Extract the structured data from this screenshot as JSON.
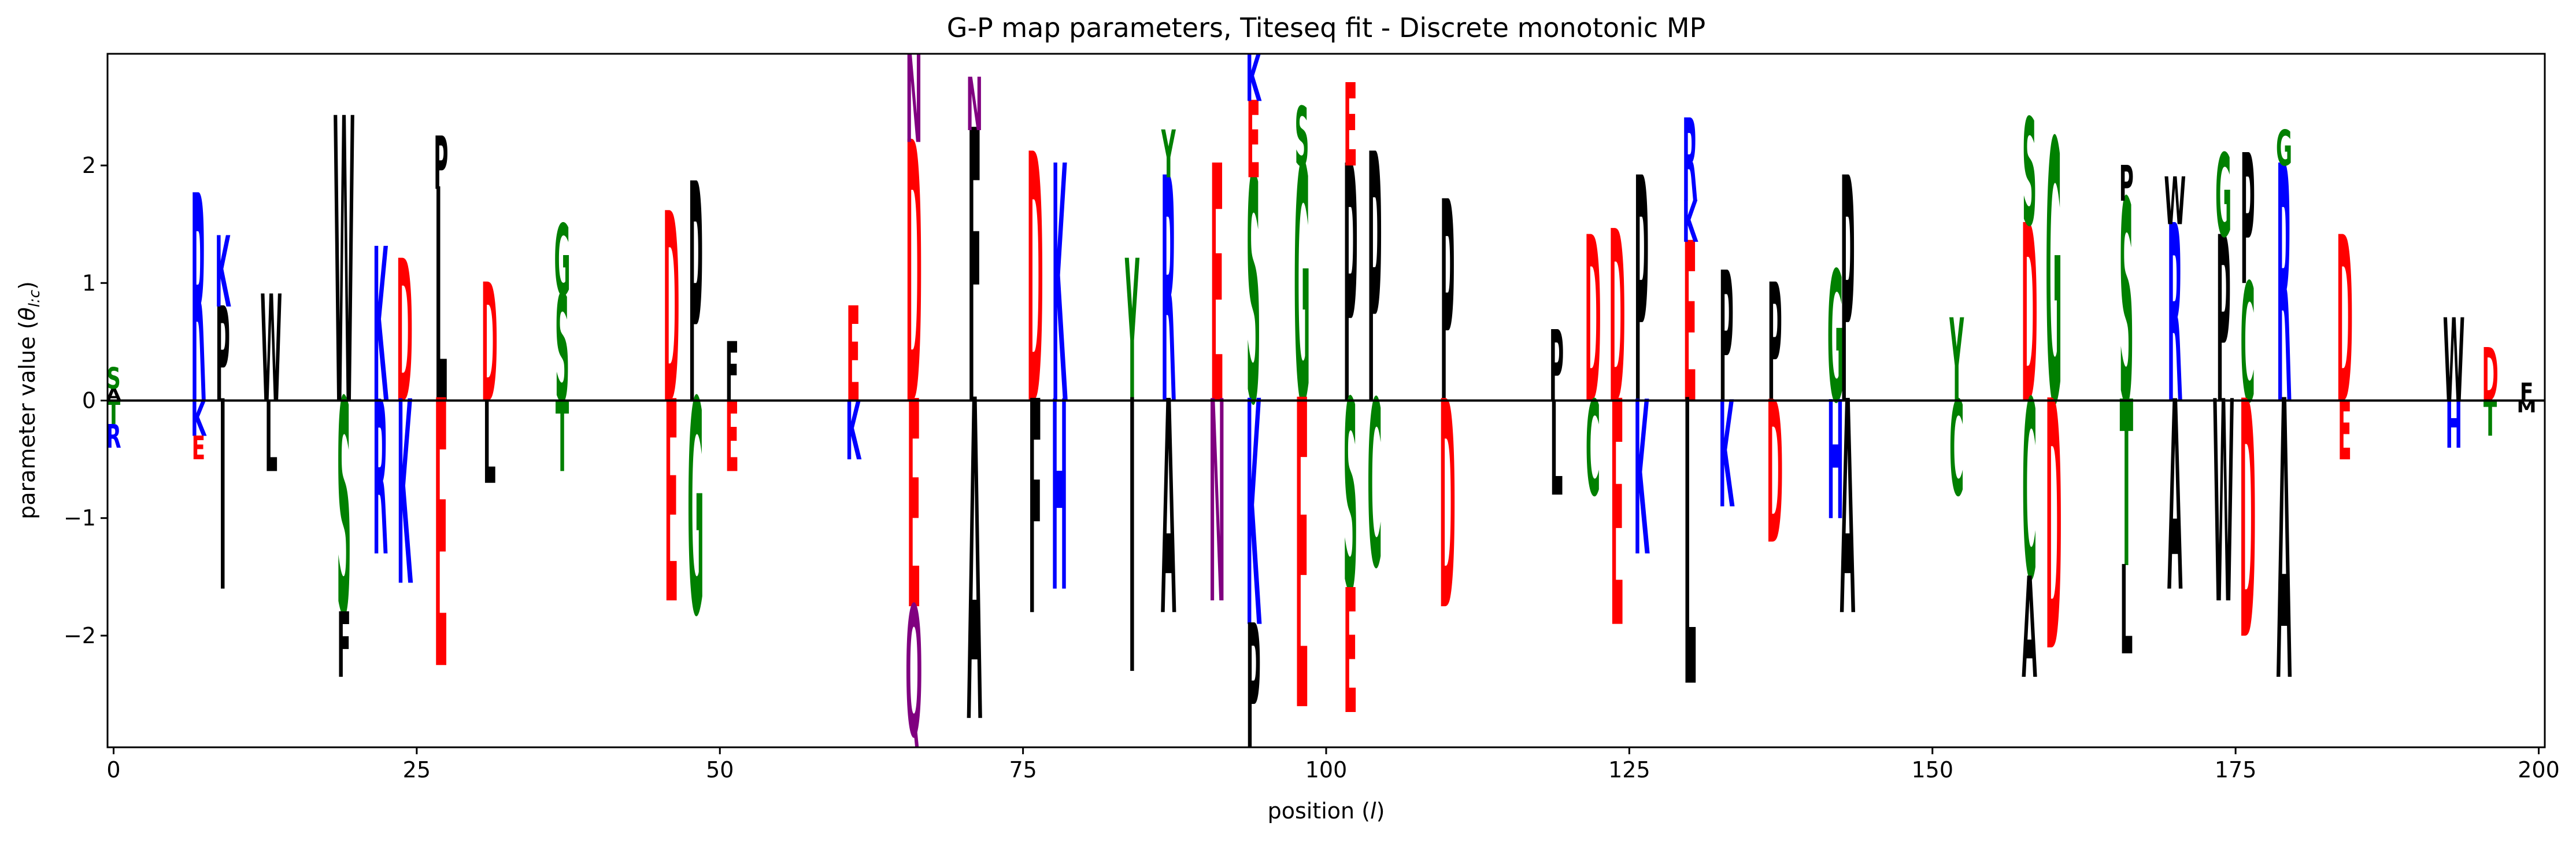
{
  "chart_data": {
    "type": "sequence-logo",
    "title": "G-P map parameters, Titeseq fit - Discrete monotonic MP",
    "xlabel_prefix": "position (",
    "xlabel_var": "l",
    "xlabel_suffix": ")",
    "ylabel_prefix": "parameter value (",
    "ylabel_var": "θ",
    "ylabel_sub": "l:c",
    "ylabel_suffix": ")",
    "xlim": [
      -0.5,
      200.5
    ],
    "ylim": [
      -2.95,
      2.95
    ],
    "xticks": [
      0,
      25,
      50,
      75,
      100,
      125,
      150,
      175,
      200
    ],
    "xtick_labels": [
      "0",
      "25",
      "50",
      "75",
      "100",
      "125",
      "150",
      "175",
      "200"
    ],
    "yticks": [
      -2,
      -1,
      0,
      1,
      2
    ],
    "ytick_labels": [
      "−2",
      "−1",
      "0",
      "1",
      "2"
    ],
    "baseline": 0,
    "alphabet": [
      "A",
      "C",
      "D",
      "E",
      "F",
      "G",
      "H",
      "I",
      "K",
      "L",
      "M",
      "N",
      "P",
      "Q",
      "R",
      "S",
      "T",
      "V",
      "W",
      "Y"
    ],
    "color_scheme": {
      "acidic (D,E)": "#ff0000",
      "basic (H,K,R)": "#0000ff",
      "polar (G,S,T,Y,C)": "#008000",
      "amide (N,Q)": "#800080",
      "hydrophobic (A,V,L,I,P,W,F,M)": "#000000"
    },
    "positions": [
      {
        "pos": 0,
        "letters": [
          {
            "c": "S",
            "v": 0.28
          },
          {
            "c": "A",
            "v": 0.1
          },
          {
            "c": "T",
            "v": -0.2
          },
          {
            "c": "R",
            "v": -0.4
          }
        ]
      },
      {
        "pos": 7,
        "letters": [
          {
            "c": "R",
            "v": 1.75
          },
          {
            "c": "K",
            "v": -0.3
          },
          {
            "c": "E",
            "v": -0.5
          }
        ]
      },
      {
        "pos": 9,
        "letters": [
          {
            "c": "K",
            "v": 1.4
          },
          {
            "c": "P",
            "v": 0.8
          },
          {
            "c": "I",
            "v": -1.6
          }
        ]
      },
      {
        "pos": 13,
        "letters": [
          {
            "c": "W",
            "v": 0.9
          },
          {
            "c": "L",
            "v": -0.6
          }
        ]
      },
      {
        "pos": 19,
        "letters": [
          {
            "c": "W",
            "v": 2.4
          },
          {
            "c": "S",
            "v": -1.8
          },
          {
            "c": "F",
            "v": -2.35
          }
        ]
      },
      {
        "pos": 22,
        "letters": [
          {
            "c": "K",
            "v": 1.3
          },
          {
            "c": "R",
            "v": -1.3
          }
        ]
      },
      {
        "pos": 24,
        "letters": [
          {
            "c": "D",
            "v": 1.2
          },
          {
            "c": "K",
            "v": -1.55
          }
        ]
      },
      {
        "pos": 27,
        "letters": [
          {
            "c": "P",
            "v": 2.25
          },
          {
            "c": "L",
            "v": 1.8
          },
          {
            "c": "E",
            "v": -2.25
          }
        ]
      },
      {
        "pos": 31,
        "letters": [
          {
            "c": "D",
            "v": 1.0
          },
          {
            "c": "L",
            "v": -0.7
          }
        ]
      },
      {
        "pos": 37,
        "letters": [
          {
            "c": "G",
            "v": 1.5
          },
          {
            "c": "S",
            "v": 0.9
          },
          {
            "c": "T",
            "v": -0.6
          }
        ]
      },
      {
        "pos": 46,
        "letters": [
          {
            "c": "D",
            "v": 1.6
          },
          {
            "c": "E",
            "v": -1.7
          }
        ]
      },
      {
        "pos": 48,
        "letters": [
          {
            "c": "P",
            "v": 1.85
          },
          {
            "c": "G",
            "v": -1.8
          }
        ]
      },
      {
        "pos": 51,
        "letters": [
          {
            "c": "F",
            "v": 0.5
          },
          {
            "c": "E",
            "v": -0.6
          }
        ]
      },
      {
        "pos": 61,
        "letters": [
          {
            "c": "E",
            "v": 0.8
          },
          {
            "c": "K",
            "v": -0.5
          }
        ]
      },
      {
        "pos": 66,
        "letters": [
          {
            "c": "N",
            "v": 2.95
          },
          {
            "c": "D",
            "v": 2.2
          },
          {
            "c": "E",
            "v": -1.75
          },
          {
            "c": "Q",
            "v": -2.85
          }
        ]
      },
      {
        "pos": 71,
        "letters": [
          {
            "c": "N",
            "v": 2.75
          },
          {
            "c": "F",
            "v": 2.3
          },
          {
            "c": "A",
            "v": -2.7
          }
        ]
      },
      {
        "pos": 76,
        "letters": [
          {
            "c": "D",
            "v": 2.1
          },
          {
            "c": "F",
            "v": -1.8
          }
        ]
      },
      {
        "pos": 78,
        "letters": [
          {
            "c": "K",
            "v": 2.0
          },
          {
            "c": "H",
            "v": -1.6
          }
        ]
      },
      {
        "pos": 84,
        "letters": [
          {
            "c": "Y",
            "v": 1.2
          },
          {
            "c": "I",
            "v": -2.3
          }
        ]
      },
      {
        "pos": 87,
        "letters": [
          {
            "c": "Y",
            "v": 2.3
          },
          {
            "c": "R",
            "v": 1.9
          },
          {
            "c": "A",
            "v": -1.8
          }
        ]
      },
      {
        "pos": 91,
        "letters": [
          {
            "c": "E",
            "v": 2.0
          },
          {
            "c": "N",
            "v": -1.7
          }
        ]
      },
      {
        "pos": 94,
        "letters": [
          {
            "c": "K",
            "v": 2.95
          },
          {
            "c": "E",
            "v": 2.55
          },
          {
            "c": "S",
            "v": 1.9
          },
          {
            "c": "K",
            "v": -1.9
          },
          {
            "c": "P",
            "v": -2.95
          }
        ]
      },
      {
        "pos": 98,
        "letters": [
          {
            "c": "S",
            "v": 2.5
          },
          {
            "c": "G",
            "v": 2.0
          },
          {
            "c": "E",
            "v": -2.6
          }
        ]
      },
      {
        "pos": 102,
        "letters": [
          {
            "c": "E",
            "v": 2.7
          },
          {
            "c": "P",
            "v": 2.0
          },
          {
            "c": "S",
            "v": -1.6
          },
          {
            "c": "E",
            "v": -2.65
          }
        ]
      },
      {
        "pos": 104,
        "letters": [
          {
            "c": "P",
            "v": 2.1
          },
          {
            "c": "C",
            "v": -1.4
          }
        ]
      },
      {
        "pos": 110,
        "letters": [
          {
            "c": "P",
            "v": 1.7
          },
          {
            "c": "D",
            "v": -1.75
          }
        ]
      },
      {
        "pos": 119,
        "letters": [
          {
            "c": "P",
            "v": 0.6
          },
          {
            "c": "L",
            "v": -0.8
          }
        ]
      },
      {
        "pos": 122,
        "letters": [
          {
            "c": "D",
            "v": 1.4
          },
          {
            "c": "C",
            "v": -0.8
          }
        ]
      },
      {
        "pos": 124,
        "letters": [
          {
            "c": "D",
            "v": 1.45
          },
          {
            "c": "E",
            "v": -1.9
          }
        ]
      },
      {
        "pos": 126,
        "letters": [
          {
            "c": "P",
            "v": 1.9
          },
          {
            "c": "K",
            "v": -1.3
          }
        ]
      },
      {
        "pos": 130,
        "letters": [
          {
            "c": "R",
            "v": 2.4
          },
          {
            "c": "K",
            "v": 1.7
          },
          {
            "c": "E",
            "v": 1.35
          },
          {
            "c": "L",
            "v": -2.4
          }
        ]
      },
      {
        "pos": 133,
        "letters": [
          {
            "c": "P",
            "v": 1.1
          },
          {
            "c": "K",
            "v": -0.9
          }
        ]
      },
      {
        "pos": 137,
        "letters": [
          {
            "c": "P",
            "v": 1.0
          },
          {
            "c": "D",
            "v": -1.2
          }
        ]
      },
      {
        "pos": 142,
        "letters": [
          {
            "c": "G",
            "v": 1.1
          },
          {
            "c": "H",
            "v": -1.0
          }
        ]
      },
      {
        "pos": 143,
        "letters": [
          {
            "c": "P",
            "v": 1.9
          },
          {
            "c": "A",
            "v": -1.8
          }
        ]
      },
      {
        "pos": 152,
        "letters": [
          {
            "c": "Y",
            "v": 0.7
          },
          {
            "c": "C",
            "v": -0.8
          }
        ]
      },
      {
        "pos": 158,
        "letters": [
          {
            "c": "S",
            "v": 2.4
          },
          {
            "c": "D",
            "v": 1.5
          },
          {
            "c": "C",
            "v": -1.5
          },
          {
            "c": "A",
            "v": -2.35
          }
        ]
      },
      {
        "pos": 160,
        "letters": [
          {
            "c": "G",
            "v": 2.2
          },
          {
            "c": "D",
            "v": -2.1
          }
        ]
      },
      {
        "pos": 166,
        "letters": [
          {
            "c": "P",
            "v": 2.0
          },
          {
            "c": "S",
            "v": 1.7
          },
          {
            "c": "T",
            "v": -1.4
          },
          {
            "c": "L",
            "v": -2.15
          }
        ]
      },
      {
        "pos": 170,
        "letters": [
          {
            "c": "W",
            "v": 1.9
          },
          {
            "c": "R",
            "v": 1.5
          },
          {
            "c": "A",
            "v": -1.6
          }
        ]
      },
      {
        "pos": 174,
        "letters": [
          {
            "c": "G",
            "v": 2.1
          },
          {
            "c": "P",
            "v": 1.4
          },
          {
            "c": "W",
            "v": -1.7
          }
        ]
      },
      {
        "pos": 176,
        "letters": [
          {
            "c": "P",
            "v": 2.1
          },
          {
            "c": "C",
            "v": 1.0
          },
          {
            "c": "D",
            "v": -2.0
          }
        ]
      },
      {
        "pos": 179,
        "letters": [
          {
            "c": "G",
            "v": 2.3
          },
          {
            "c": "R",
            "v": 2.0
          },
          {
            "c": "A",
            "v": -2.35
          }
        ]
      },
      {
        "pos": 184,
        "letters": [
          {
            "c": "D",
            "v": 1.4
          },
          {
            "c": "E",
            "v": -0.5
          }
        ]
      },
      {
        "pos": 193,
        "letters": [
          {
            "c": "W",
            "v": 0.7
          },
          {
            "c": "H",
            "v": -0.4
          }
        ]
      },
      {
        "pos": 196,
        "letters": [
          {
            "c": "D",
            "v": 0.45
          },
          {
            "c": "T",
            "v": -0.3
          }
        ]
      },
      {
        "pos": 199,
        "letters": [
          {
            "c": "F",
            "v": 0.15
          },
          {
            "c": "M",
            "v": -0.1
          }
        ]
      }
    ]
  }
}
